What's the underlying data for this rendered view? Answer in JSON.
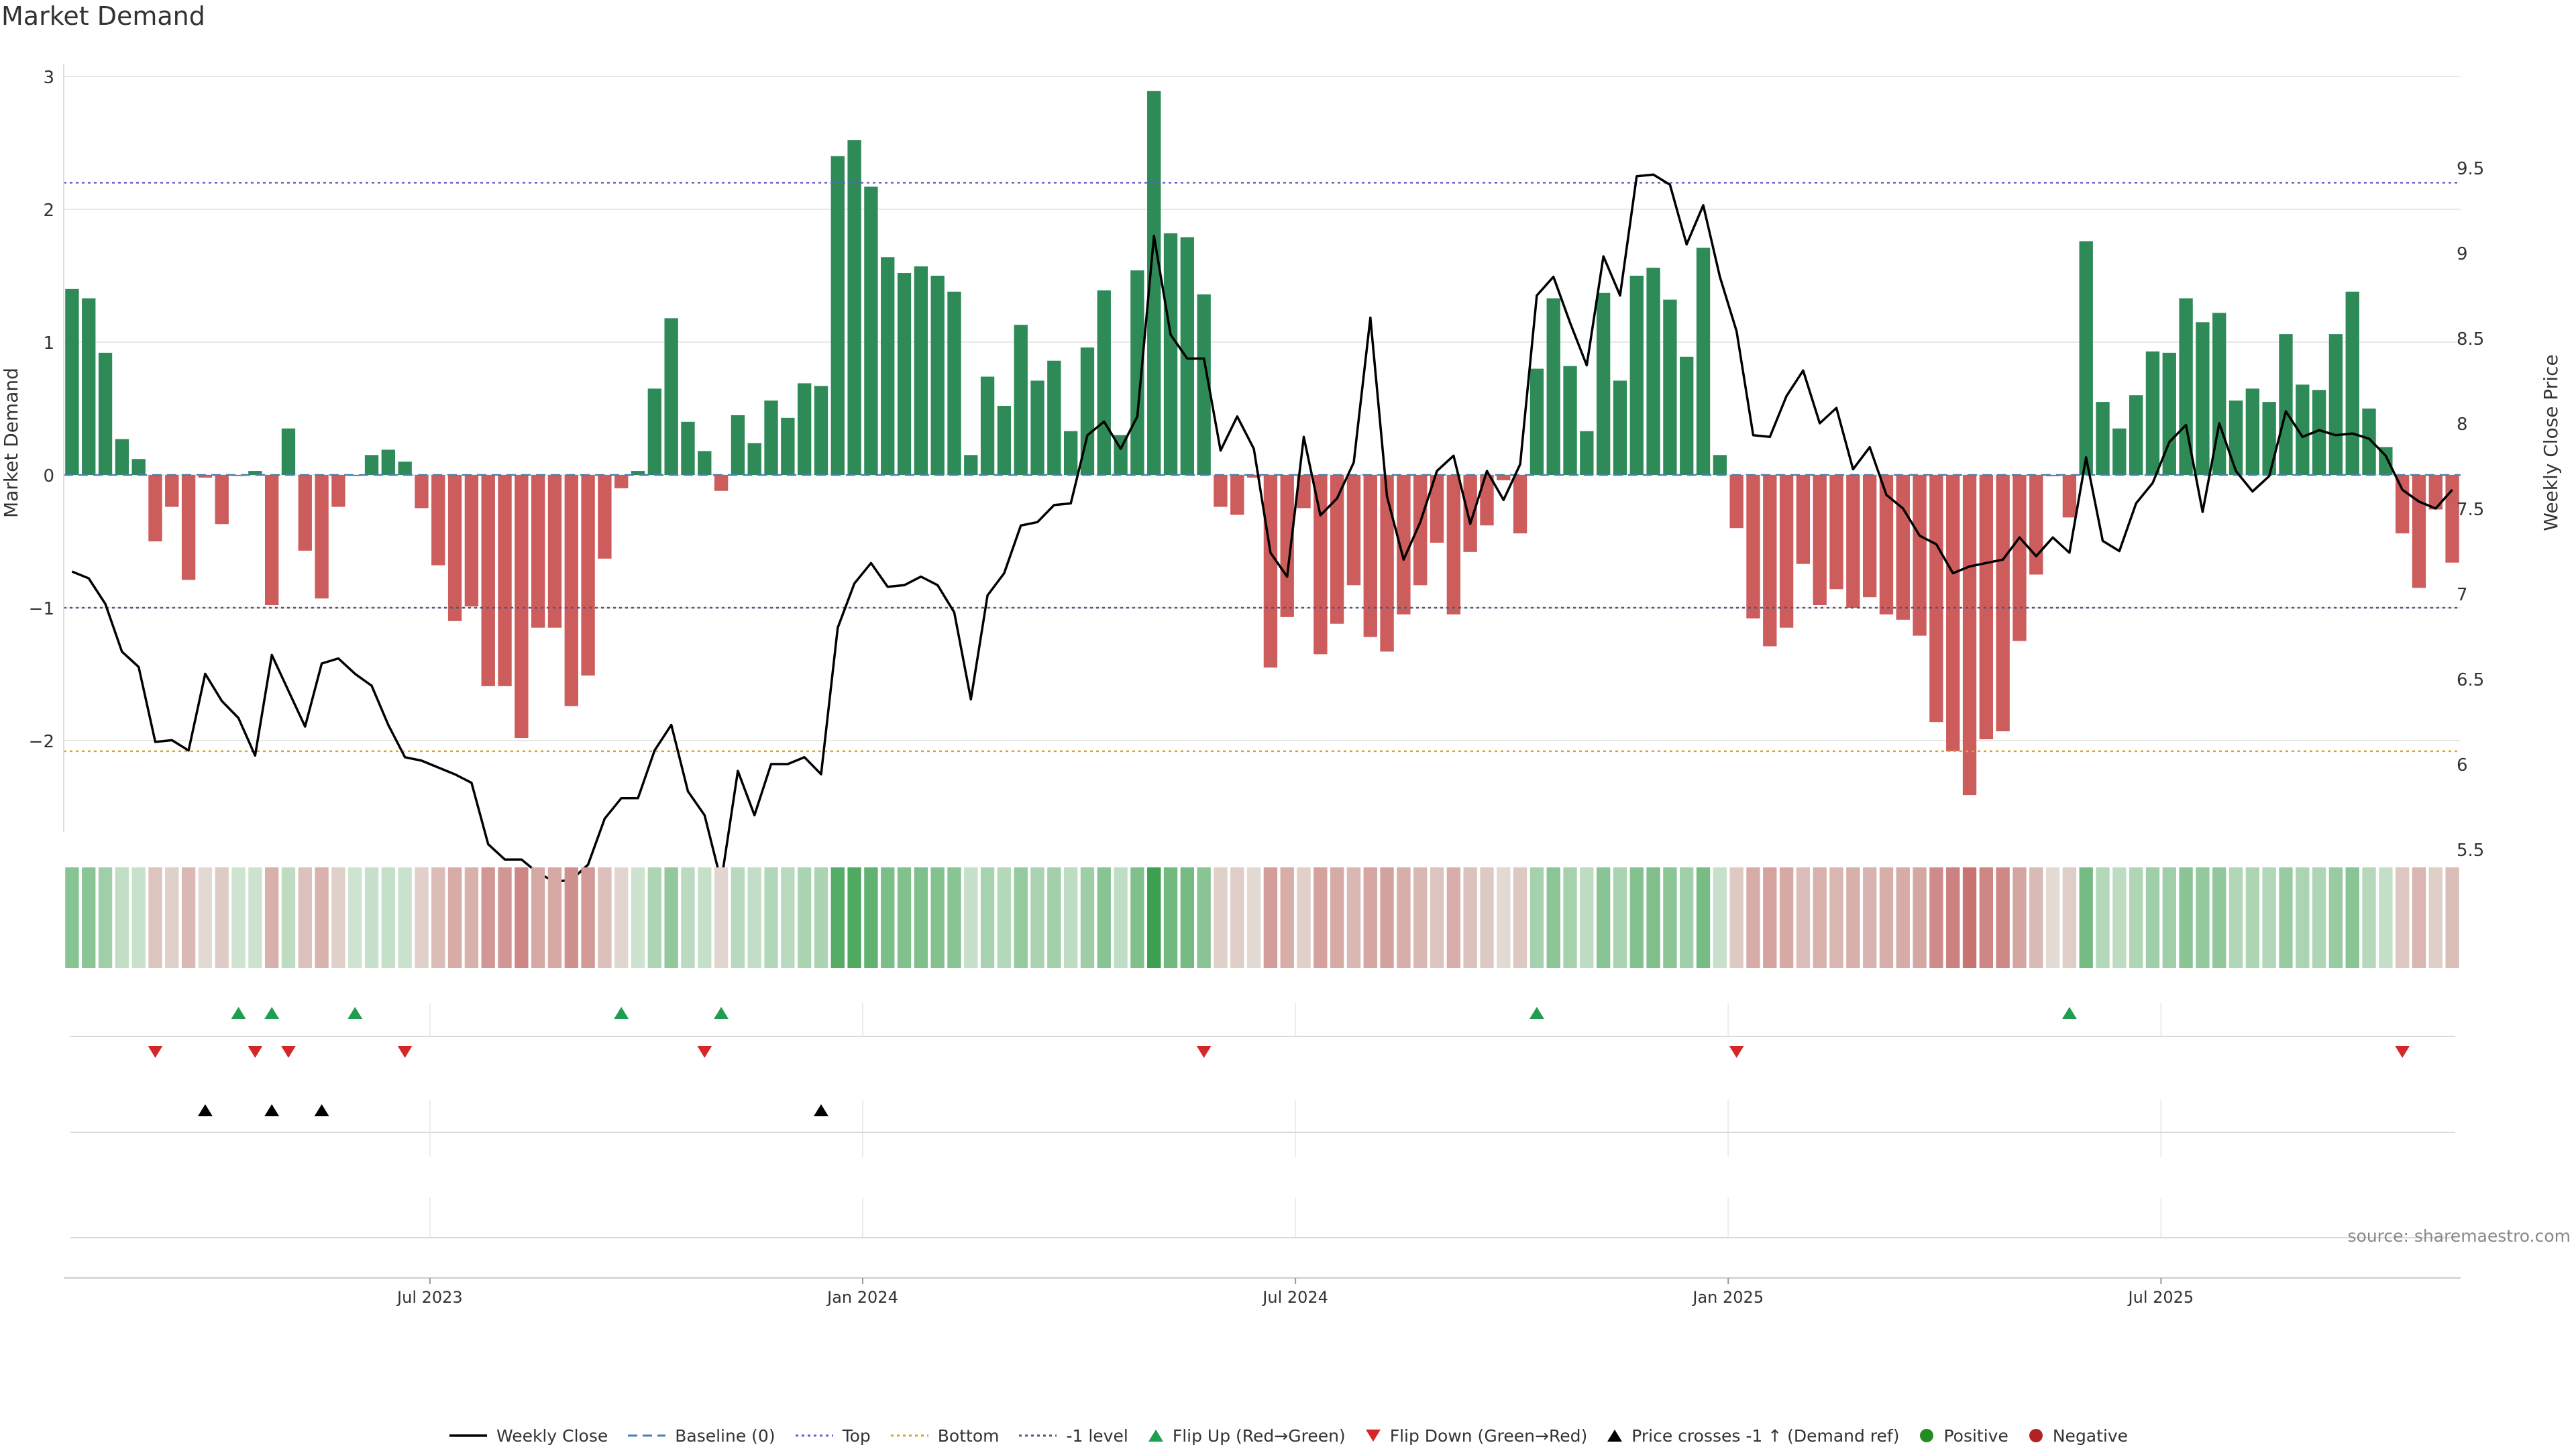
{
  "page": {
    "title": "Market Demand",
    "source": "source: sharemaestro.com"
  },
  "colors": {
    "positive": "#2e8b57",
    "negative": "#cd5c5c",
    "price": "#000000",
    "top": "#6a5acd",
    "bottom": "#daa520",
    "minus1": "#555577",
    "flip_up": "#1f9e4f",
    "flip_down": "#d62728"
  },
  "chart_data": {
    "type": "bar",
    "title": "Market Demand",
    "xlabel": "",
    "ylabel": "Market Demand",
    "ylabel_right": "Weekly Close Price",
    "ylim": [
      -2.7,
      3.0
    ],
    "ylim_right": [
      5.0,
      9.6
    ],
    "yticks": [
      -2,
      -1,
      0,
      1,
      2,
      3
    ],
    "yticks_right": [
      5.5,
      6,
      6.5,
      7,
      7.5,
      8,
      8.5,
      9,
      9.5
    ],
    "x_tick_labels": [
      "Jul 2023",
      "Jan 2024",
      "Jul 2024",
      "Jan 2025",
      "Jul 2025"
    ],
    "x_tick_weeks": [
      22,
      48,
      74,
      100,
      126
    ],
    "grid": true,
    "legend_position": "bottom-center",
    "reference_lines": {
      "top": 2.2,
      "bottom": -2.08,
      "minus1": -1.0,
      "baseline": 0
    },
    "demand": [
      1.4,
      1.33,
      0.92,
      0.27,
      0.12,
      -0.5,
      -0.24,
      -0.79,
      -0.02,
      -0.37,
      0.0,
      0.03,
      -0.98,
      0.35,
      -0.57,
      -0.93,
      -0.24,
      0.0,
      0.15,
      0.19,
      0.1,
      -0.25,
      -0.68,
      -1.1,
      -0.99,
      -1.59,
      -1.59,
      -1.98,
      -1.15,
      -1.15,
      -1.74,
      -1.51,
      -0.63,
      -0.1,
      0.03,
      0.65,
      1.18,
      0.4,
      0.18,
      -0.12,
      0.45,
      0.24,
      0.56,
      0.43,
      0.69,
      0.67,
      2.4,
      2.52,
      2.17,
      1.64,
      1.52,
      1.57,
      1.5,
      1.38,
      0.15,
      0.74,
      0.52,
      1.13,
      0.71,
      0.86,
      0.33,
      0.96,
      1.39,
      0.3,
      1.54,
      2.89,
      1.82,
      1.79,
      1.36,
      -0.24,
      -0.3,
      -0.02,
      -1.45,
      -1.07,
      -0.25,
      -1.35,
      -1.12,
      -0.83,
      -1.22,
      -1.33,
      -1.05,
      -0.83,
      -0.51,
      -1.05,
      -0.58,
      -0.38,
      -0.04,
      -0.44,
      0.8,
      1.33,
      0.82,
      0.33,
      1.37,
      0.71,
      1.5,
      1.56,
      1.32,
      0.89,
      1.71,
      0.15,
      -0.4,
      -1.08,
      -1.29,
      -1.15,
      -0.67,
      -0.98,
      -0.86,
      -1.0,
      -0.92,
      -1.05,
      -1.09,
      -1.21,
      -1.86,
      -2.08,
      -2.41,
      -1.99,
      -1.93,
      -1.25,
      -0.75,
      -0.01,
      -0.32,
      1.76,
      0.55,
      0.35,
      0.6,
      0.93,
      0.92,
      1.33,
      1.15,
      1.22,
      0.56,
      0.65,
      0.55,
      1.06,
      0.68,
      0.64,
      1.06,
      1.38,
      0.5,
      0.21,
      -0.44,
      -0.85,
      -0.26,
      -0.66
    ],
    "price": [
      7.13,
      7.09,
      6.94,
      6.66,
      6.57,
      6.13,
      6.14,
      6.08,
      6.53,
      6.37,
      6.27,
      6.05,
      6.64,
      6.43,
      6.22,
      6.59,
      6.62,
      6.53,
      6.46,
      6.23,
      6.04,
      6.02,
      5.98,
      5.94,
      5.89,
      5.53,
      5.44,
      5.44,
      5.36,
      5.31,
      5.32,
      5.41,
      5.68,
      5.8,
      5.8,
      6.08,
      6.23,
      5.84,
      5.7,
      5.31,
      5.96,
      5.7,
      6.0,
      6.0,
      6.04,
      5.94,
      6.8,
      7.06,
      7.18,
      7.04,
      7.05,
      7.1,
      7.05,
      6.89,
      6.38,
      6.99,
      7.12,
      7.4,
      7.42,
      7.52,
      7.53,
      7.93,
      8.01,
      7.85,
      8.04,
      9.1,
      8.52,
      8.38,
      8.38,
      7.84,
      8.04,
      7.85,
      7.24,
      7.1,
      7.92,
      7.46,
      7.56,
      7.77,
      8.62,
      7.57,
      7.2,
      7.42,
      7.72,
      7.81,
      7.41,
      7.72,
      7.55,
      7.76,
      8.75,
      8.86,
      8.59,
      8.34,
      8.98,
      8.75,
      9.45,
      9.46,
      9.4,
      9.05,
      9.28,
      8.86,
      8.54,
      7.93,
      7.92,
      8.16,
      8.31,
      8.0,
      8.09,
      7.73,
      7.86,
      7.58,
      7.5,
      7.34,
      7.29,
      7.12,
      7.16,
      7.18,
      7.2,
      7.33,
      7.22,
      7.33,
      7.24,
      7.8,
      7.31,
      7.25,
      7.53,
      7.65,
      7.89,
      7.99,
      7.48,
      8.0,
      7.72,
      7.6,
      7.69,
      8.07,
      7.92,
      7.96,
      7.93,
      7.94,
      7.91,
      7.81,
      7.61,
      7.54,
      7.5,
      7.61
    ],
    "flip_up_weeks": [
      10,
      12,
      17,
      33,
      39,
      88,
      120
    ],
    "flip_down_weeks": [
      5,
      11,
      13,
      20,
      38,
      68,
      100,
      140
    ],
    "price_cross_weeks": [
      8,
      12,
      15,
      45
    ]
  },
  "legend": [
    {
      "label": "Weekly Close",
      "icon": "line-solid-icon",
      "color": "#000000"
    },
    {
      "label": "Baseline (0)",
      "icon": "line-dashed-icon",
      "color": "#4a7fb0"
    },
    {
      "label": "Top",
      "icon": "line-dotted-icon",
      "color": "#6a5acd"
    },
    {
      "label": "Bottom",
      "icon": "line-dotted-icon",
      "color": "#daa520"
    },
    {
      "label": "-1 level",
      "icon": "line-dotted-icon",
      "color": "#555577"
    },
    {
      "label": "Flip Up (Red→Green)",
      "icon": "triangle-up-icon",
      "color": "#1f9e4f"
    },
    {
      "label": "Flip Down (Green→Red)",
      "icon": "triangle-down-icon",
      "color": "#d62728"
    },
    {
      "label": "Price crosses -1 ↑ (Demand ref)",
      "icon": "triangle-up-icon",
      "color": "#000000"
    },
    {
      "label": "Positive",
      "icon": "circle-icon",
      "color": "#228b22"
    },
    {
      "label": "Negative",
      "icon": "circle-icon",
      "color": "#b22222"
    }
  ]
}
